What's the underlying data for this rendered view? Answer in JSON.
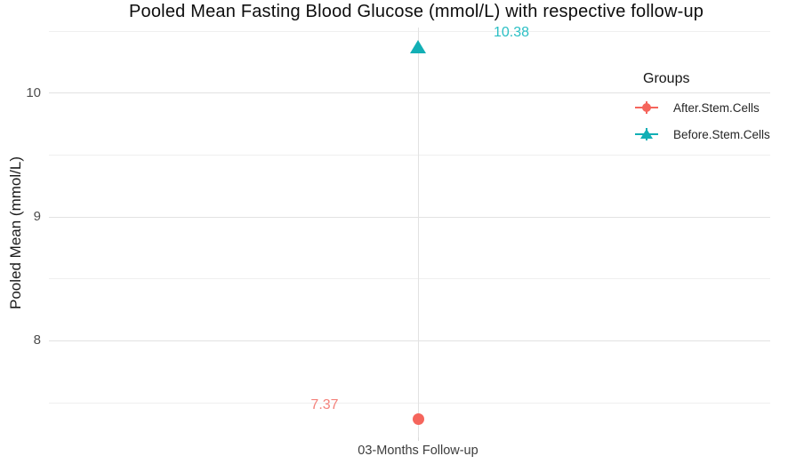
{
  "title": "Pooled Mean Fasting Blood Glucose (mmol/L) with respective follow-up",
  "chart_data": {
    "type": "scatter",
    "title": "Pooled Mean Fasting Blood Glucose (mmol/L) with respective follow-up",
    "xlabel": "",
    "ylabel": "Pooled Mean (mmol/L)",
    "x_categories": [
      "03-Months Follow-up"
    ],
    "ylim": [
      7.22,
      10.53
    ],
    "y_major_ticks": [
      8,
      9,
      10
    ],
    "y_minor_ticks": [
      7.5,
      8.5,
      9.5,
      10.5
    ],
    "grid": true,
    "legend": {
      "title": "Groups",
      "position": "inside-top-right",
      "entries": [
        {
          "label": "After.Stem.Cells",
          "marker": "circle",
          "color": "#f5655c"
        },
        {
          "label": "Before.Stem.Cells",
          "marker": "triangle",
          "color": "#12afb5"
        }
      ]
    },
    "series": [
      {
        "name": "After.Stem.Cells",
        "marker": "circle",
        "color": "#f5655c",
        "x": "03-Months Follow-up",
        "y": 7.37,
        "label": "7.37",
        "label_color": "#f4837c",
        "label_side": "left"
      },
      {
        "name": "Before.Stem.Cells",
        "marker": "triangle",
        "color": "#12afb5",
        "x": "03-Months Follow-up",
        "y": 10.38,
        "label": "10.38",
        "label_color": "#2abfc4",
        "label_side": "right"
      }
    ]
  },
  "colors": {
    "background": "#ffffff",
    "grid_major": "#e2e2e2",
    "grid_minor": "#efefef",
    "axis_text": "#4d4d4d",
    "title_text": "#0d0d0d"
  }
}
